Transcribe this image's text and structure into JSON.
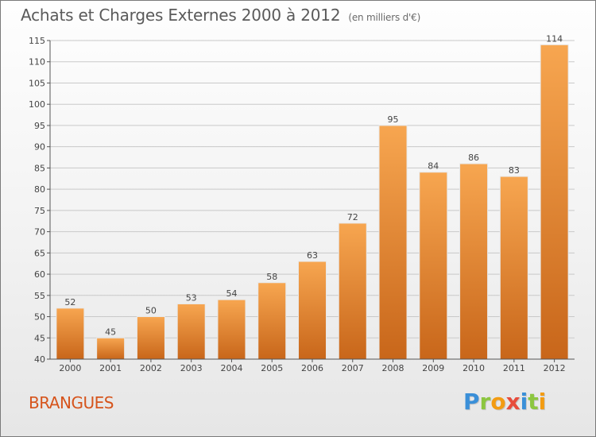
{
  "header": {
    "title": "Achats et Charges Externes 2000 à 2012",
    "subtitle": "(en milliers d'€)"
  },
  "footer": {
    "commune": "BRANGUES",
    "logo_letters": [
      "P",
      "r",
      "o",
      "x",
      "i",
      "t",
      "i"
    ],
    "logo_colors": [
      "#3a8fd8",
      "#8cc63f",
      "#f39c12",
      "#e74c3c",
      "#3a8fd8",
      "#8cc63f",
      "#f39c12"
    ]
  },
  "colors": {
    "bar_top": "#f7a650",
    "bar_bottom": "#c8661a",
    "grid": "#c9c9c9",
    "axis": "#555555",
    "text": "#444444"
  },
  "chart_data": {
    "type": "bar",
    "title": "Achats et Charges Externes 2000 à 2012",
    "subtitle": "(en milliers d'€)",
    "xlabel": "",
    "ylabel": "",
    "categories": [
      "2000",
      "2001",
      "2002",
      "2003",
      "2004",
      "2005",
      "2006",
      "2007",
      "2008",
      "2009",
      "2010",
      "2011",
      "2012"
    ],
    "values": [
      52,
      45,
      50,
      53,
      54,
      58,
      63,
      72,
      95,
      84,
      86,
      83,
      114
    ],
    "ylim": [
      40,
      115
    ],
    "yticks": [
      40,
      45,
      50,
      55,
      60,
      65,
      70,
      75,
      80,
      85,
      90,
      95,
      100,
      105,
      110,
      115
    ],
    "grid": true,
    "data_labels": true
  }
}
